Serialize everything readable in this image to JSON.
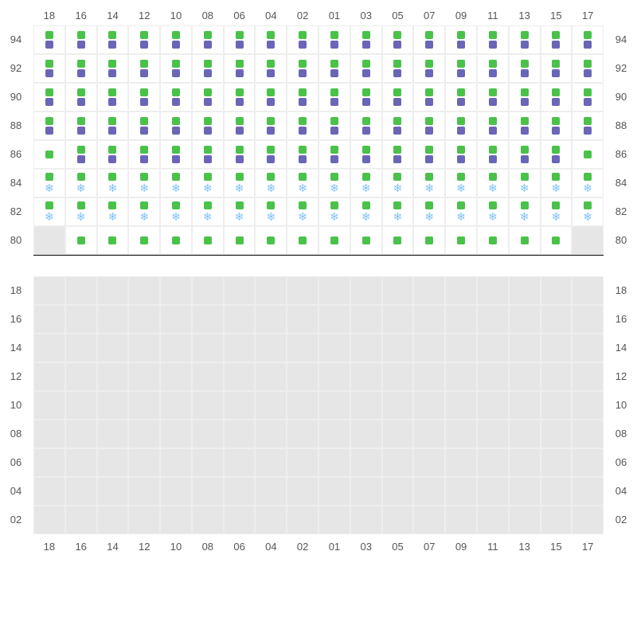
{
  "columns": [
    "18",
    "16",
    "14",
    "12",
    "10",
    "08",
    "06",
    "04",
    "02",
    "01",
    "03",
    "05",
    "07",
    "09",
    "11",
    "13",
    "15",
    "17"
  ],
  "top_section": {
    "rows": [
      {
        "label": "94",
        "cells": [
          "gp",
          "gp",
          "gp",
          "gp",
          "gp",
          "gp",
          "gp",
          "gp",
          "gp",
          "gp",
          "gp",
          "gp",
          "gp",
          "gp",
          "gp",
          "gp",
          "gp",
          "gp"
        ]
      },
      {
        "label": "92",
        "cells": [
          "gp",
          "gp",
          "gp",
          "gp",
          "gp",
          "gp",
          "gp",
          "gp",
          "gp",
          "gp",
          "gp",
          "gp",
          "gp",
          "gp",
          "gp",
          "gp",
          "gp",
          "gp"
        ]
      },
      {
        "label": "90",
        "cells": [
          "gp",
          "gp",
          "gp",
          "gp",
          "gp",
          "gp",
          "gp",
          "gp",
          "gp",
          "gp",
          "gp",
          "gp",
          "gp",
          "gp",
          "gp",
          "gp",
          "gp",
          "gp"
        ]
      },
      {
        "label": "88",
        "cells": [
          "gp",
          "gp",
          "gp",
          "gp",
          "gp",
          "gp",
          "gp",
          "gp",
          "gp",
          "gp",
          "gp",
          "gp",
          "gp",
          "gp",
          "gp",
          "gp",
          "gp",
          "gp"
        ]
      },
      {
        "label": "86",
        "cells": [
          "g",
          "gp",
          "gp",
          "gp",
          "gp",
          "gp",
          "gp",
          "gp",
          "gp",
          "gp",
          "gp",
          "gp",
          "gp",
          "gp",
          "gp",
          "gp",
          "gp",
          "g"
        ]
      },
      {
        "label": "84",
        "cells": [
          "gs",
          "gs",
          "gs",
          "gs",
          "gs",
          "gs",
          "gs",
          "gs",
          "gs",
          "gs",
          "gs",
          "gs",
          "gs",
          "gs",
          "gs",
          "gs",
          "gs",
          "gs"
        ]
      },
      {
        "label": "82",
        "cells": [
          "gs",
          "gs",
          "gs",
          "gs",
          "gs",
          "gs",
          "gs",
          "gs",
          "gs",
          "gs",
          "gs",
          "gs",
          "gs",
          "gs",
          "gs",
          "gs",
          "gs",
          "gs"
        ]
      },
      {
        "label": "80",
        "cells": [
          "x",
          "g",
          "g",
          "g",
          "g",
          "g",
          "g",
          "g",
          "g",
          "g",
          "g",
          "g",
          "g",
          "g",
          "g",
          "g",
          "g",
          "x"
        ]
      }
    ]
  },
  "bottom_section": {
    "rows": [
      {
        "label": "18"
      },
      {
        "label": "16"
      },
      {
        "label": "14"
      },
      {
        "label": "12"
      },
      {
        "label": "10"
      },
      {
        "label": "08"
      },
      {
        "label": "06"
      },
      {
        "label": "04"
      },
      {
        "label": "02"
      }
    ]
  },
  "colors": {
    "green": "#4ac24a",
    "purple": "#6b65b7",
    "snow": "#7fc3f7",
    "disabled_bg": "#e6e6e6",
    "grid_line": "#eeeeee",
    "text": "#555555"
  },
  "icons": {
    "snowflake": "❄"
  },
  "cell_types": {
    "gp": "green-square over purple-square",
    "g": "green-square only",
    "gs": "green-square over snowflake-icon",
    "x": "disabled empty"
  }
}
